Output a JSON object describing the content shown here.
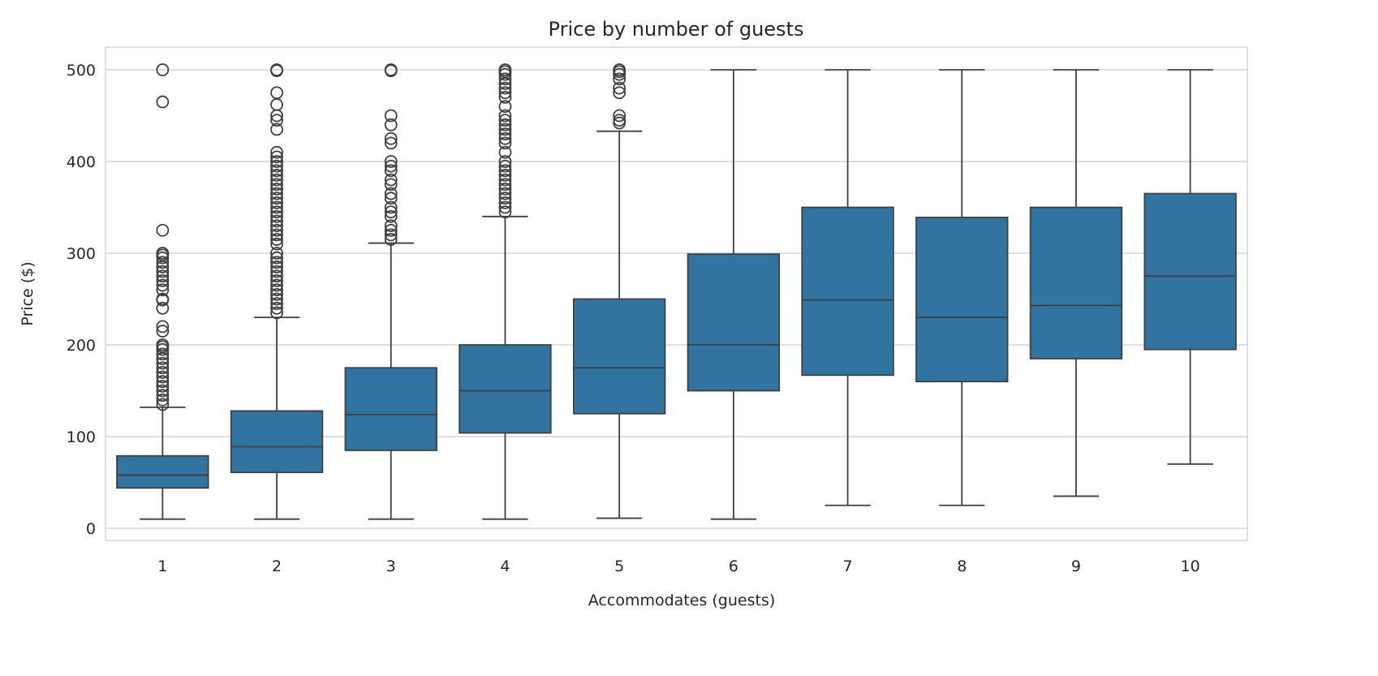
{
  "chart_data": {
    "type": "box",
    "title": "Price by number of guests",
    "xlabel": "Accommodates (guests)",
    "ylabel": "Price ($)",
    "ylim": [
      -13,
      525
    ],
    "yticks": [
      0,
      100,
      200,
      300,
      400,
      500
    ],
    "grid": true,
    "color": "#3274a1",
    "line_color": "#3f3f3f",
    "categories": [
      "1",
      "2",
      "3",
      "4",
      "5",
      "6",
      "7",
      "8",
      "9",
      "10"
    ],
    "boxes": [
      {
        "whisker_low": 10,
        "q1": 44,
        "median": 58,
        "q3": 79,
        "whisker_high": 132,
        "outliers": [
          500,
          465,
          325,
          300,
          298,
          295,
          290,
          285,
          280,
          275,
          270,
          265,
          260,
          250,
          249,
          240,
          220,
          215,
          200,
          198,
          195,
          190,
          185,
          180,
          175,
          170,
          165,
          160,
          155,
          150,
          145,
          140,
          135
        ]
      },
      {
        "whisker_low": 10,
        "q1": 61,
        "median": 89,
        "q3": 128,
        "whisker_high": 230,
        "outliers": [
          500,
          499,
          475,
          462,
          450,
          445,
          435,
          410,
          405,
          400,
          395,
          390,
          385,
          380,
          375,
          370,
          365,
          360,
          355,
          350,
          345,
          340,
          335,
          330,
          325,
          320,
          315,
          310,
          300,
          295,
          290,
          285,
          280,
          275,
          270,
          265,
          260,
          255,
          250,
          245,
          240,
          235
        ]
      },
      {
        "whisker_low": 10,
        "q1": 85,
        "median": 124,
        "q3": 175,
        "whisker_high": 311,
        "outliers": [
          500,
          499,
          450,
          440,
          425,
          420,
          400,
          395,
          390,
          380,
          375,
          365,
          360,
          350,
          345,
          340,
          330,
          325,
          320,
          315
        ]
      },
      {
        "whisker_low": 10,
        "q1": 104,
        "median": 150,
        "q3": 200,
        "whisker_high": 340,
        "outliers": [
          500,
          498,
          495,
          490,
          485,
          480,
          475,
          470,
          460,
          450,
          445,
          440,
          435,
          430,
          425,
          420,
          410,
          400,
          395,
          390,
          385,
          380,
          375,
          370,
          365,
          360,
          355,
          350,
          345
        ]
      },
      {
        "whisker_low": 11,
        "q1": 125,
        "median": 175,
        "q3": 250,
        "whisker_high": 433,
        "outliers": [
          500,
          498,
          495,
          490,
          480,
          475,
          450,
          445,
          442
        ]
      },
      {
        "whisker_low": 10,
        "q1": 150,
        "median": 200,
        "q3": 299,
        "whisker_high": 500,
        "outliers": []
      },
      {
        "whisker_low": 25,
        "q1": 167,
        "median": 249,
        "q3": 350,
        "whisker_high": 500,
        "outliers": []
      },
      {
        "whisker_low": 25,
        "q1": 160,
        "median": 230,
        "q3": 339,
        "whisker_high": 500,
        "outliers": []
      },
      {
        "whisker_low": 35,
        "q1": 185,
        "median": 243,
        "q3": 350,
        "whisker_high": 500,
        "outliers": []
      },
      {
        "whisker_low": 70,
        "q1": 195,
        "median": 275,
        "q3": 365,
        "whisker_high": 500,
        "outliers": []
      }
    ]
  }
}
